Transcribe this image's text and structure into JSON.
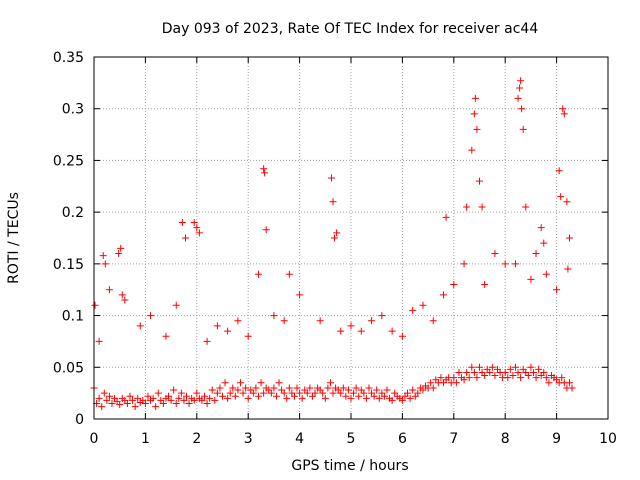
{
  "chart_data": {
    "type": "scatter",
    "title": "Day 093 of 2023, Rate Of TEC Index for receiver ac44",
    "xlabel": "GPS time / hours",
    "ylabel": "ROTI / TECUs",
    "xlim": [
      0,
      10
    ],
    "ylim": [
      0,
      0.35
    ],
    "x_ticks": [
      "0",
      "1",
      "2",
      "3",
      "4",
      "5",
      "6",
      "7",
      "8",
      "9",
      "10"
    ],
    "y_ticks": [
      "0",
      "0.05",
      "0.1",
      "0.15",
      "0.2",
      "0.25",
      "0.3",
      "0.35"
    ],
    "grid": true,
    "marker": "+",
    "color": "#ff0000",
    "series": [
      {
        "x": [
          0.0,
          0.05,
          0.1,
          0.15,
          0.2,
          0.25,
          0.3,
          0.35,
          0.4,
          0.45,
          0.5,
          0.55,
          0.6,
          0.65,
          0.7,
          0.75,
          0.8,
          0.85,
          0.9,
          0.95,
          1.0,
          1.05,
          1.1,
          1.15,
          1.2,
          1.25,
          1.3,
          1.35,
          1.4,
          1.45,
          1.5,
          1.55,
          1.6,
          1.65,
          1.7,
          1.75,
          1.8,
          1.85,
          1.9,
          1.95,
          2.0,
          2.05,
          2.1,
          2.15,
          2.2,
          2.25,
          2.3,
          2.35,
          2.4,
          2.45,
          2.5,
          2.55,
          2.6,
          2.65,
          2.7,
          2.75,
          2.8,
          2.85,
          2.9,
          2.95,
          3.0,
          3.05,
          3.1,
          3.15,
          3.2,
          3.25,
          3.3,
          3.35,
          3.4,
          3.45,
          3.5,
          3.55,
          3.6,
          3.65,
          3.7,
          3.75,
          3.8,
          3.85,
          3.9,
          3.95,
          4.0,
          4.05,
          4.1,
          4.15,
          4.2,
          4.25,
          4.3,
          4.35,
          4.4,
          4.45,
          4.5,
          4.55,
          4.6,
          4.65,
          4.7,
          4.75,
          4.8,
          4.85,
          4.9,
          4.95,
          5.0,
          5.05,
          5.1,
          5.15,
          5.2,
          5.25,
          5.3,
          5.35,
          5.4,
          5.45,
          5.5,
          5.55,
          5.6,
          5.65,
          5.7,
          5.75,
          5.8,
          5.85,
          5.9,
          5.95,
          6.0,
          6.05,
          6.1,
          6.15,
          6.2,
          6.25,
          6.3,
          6.35,
          6.4,
          6.45,
          6.5,
          6.55,
          6.6,
          6.65,
          6.7,
          6.75,
          6.8,
          6.85,
          6.9,
          6.95,
          7.0,
          7.05,
          7.1,
          7.15,
          7.2,
          7.25,
          7.3,
          7.35,
          7.4,
          7.45,
          7.5,
          7.55,
          7.6,
          7.65,
          7.7,
          7.75,
          7.8,
          7.85,
          7.9,
          7.95,
          8.0,
          8.05,
          8.1,
          8.15,
          8.2,
          8.25,
          8.3,
          8.35,
          8.4,
          8.45,
          8.5,
          8.55,
          8.6,
          8.65,
          8.7,
          8.75,
          8.8,
          8.85,
          8.9,
          8.95,
          9.0,
          9.05,
          9.1,
          9.15,
          9.2,
          9.25,
          9.3,
          0.02,
          0.18,
          0.22,
          0.48,
          0.52,
          0.55,
          1.72,
          1.78,
          1.95,
          2.0,
          2.05,
          3.3,
          3.32,
          3.35,
          4.62,
          4.65,
          4.68,
          4.72,
          6.85,
          7.25,
          7.35,
          7.4,
          7.42,
          7.45,
          7.5,
          7.55,
          8.25,
          8.28,
          8.3,
          8.32,
          8.35,
          8.4,
          8.7,
          8.75,
          9.05,
          9.08,
          9.12,
          9.15,
          9.2,
          9.25,
          0.1,
          0.3,
          0.6,
          0.9,
          1.1,
          1.4,
          1.6,
          2.2,
          2.4,
          2.6,
          2.8,
          3.0,
          3.2,
          3.5,
          3.7,
          3.8,
          4.0,
          4.4,
          4.8,
          5.0,
          5.2,
          5.4,
          5.6,
          5.8,
          6.0,
          6.2,
          6.4,
          6.6,
          6.8,
          7.0,
          7.2,
          7.6,
          7.8,
          8.0,
          8.2,
          8.5,
          8.6,
          8.8,
          9.0,
          9.22
        ],
        "y": [
          0.03,
          0.015,
          0.02,
          0.012,
          0.025,
          0.018,
          0.022,
          0.015,
          0.02,
          0.017,
          0.014,
          0.02,
          0.018,
          0.015,
          0.022,
          0.018,
          0.012,
          0.02,
          0.016,
          0.018,
          0.015,
          0.022,
          0.018,
          0.02,
          0.012,
          0.025,
          0.018,
          0.015,
          0.02,
          0.022,
          0.018,
          0.028,
          0.015,
          0.02,
          0.025,
          0.018,
          0.022,
          0.015,
          0.02,
          0.018,
          0.025,
          0.02,
          0.018,
          0.022,
          0.015,
          0.02,
          0.028,
          0.018,
          0.025,
          0.03,
          0.022,
          0.035,
          0.02,
          0.025,
          0.03,
          0.022,
          0.028,
          0.035,
          0.025,
          0.03,
          0.02,
          0.028,
          0.025,
          0.03,
          0.022,
          0.035,
          0.025,
          0.03,
          0.028,
          0.025,
          0.03,
          0.022,
          0.035,
          0.028,
          0.025,
          0.02,
          0.03,
          0.025,
          0.022,
          0.03,
          0.025,
          0.02,
          0.028,
          0.025,
          0.03,
          0.022,
          0.025,
          0.03,
          0.028,
          0.025,
          0.02,
          0.03,
          0.035,
          0.025,
          0.03,
          0.028,
          0.025,
          0.03,
          0.022,
          0.028,
          0.02,
          0.025,
          0.03,
          0.022,
          0.028,
          0.025,
          0.02,
          0.03,
          0.025,
          0.022,
          0.028,
          0.02,
          0.025,
          0.022,
          0.028,
          0.02,
          0.018,
          0.025,
          0.022,
          0.02,
          0.018,
          0.022,
          0.025,
          0.02,
          0.028,
          0.022,
          0.025,
          0.03,
          0.028,
          0.032,
          0.03,
          0.035,
          0.03,
          0.038,
          0.035,
          0.04,
          0.035,
          0.038,
          0.04,
          0.035,
          0.04,
          0.035,
          0.045,
          0.04,
          0.038,
          0.045,
          0.04,
          0.05,
          0.045,
          0.04,
          0.05,
          0.045,
          0.042,
          0.048,
          0.045,
          0.05,
          0.042,
          0.048,
          0.045,
          0.04,
          0.045,
          0.04,
          0.048,
          0.042,
          0.05,
          0.045,
          0.04,
          0.048,
          0.045,
          0.042,
          0.05,
          0.045,
          0.04,
          0.048,
          0.042,
          0.045,
          0.04,
          0.035,
          0.042,
          0.04,
          0.038,
          0.035,
          0.04,
          0.035,
          0.03,
          0.035,
          0.03,
          0.11,
          0.158,
          0.15,
          0.16,
          0.165,
          0.12,
          0.19,
          0.175,
          0.19,
          0.185,
          0.18,
          0.242,
          0.238,
          0.183,
          0.233,
          0.21,
          0.175,
          0.18,
          0.195,
          0.205,
          0.26,
          0.295,
          0.31,
          0.28,
          0.23,
          0.205,
          0.31,
          0.32,
          0.327,
          0.3,
          0.28,
          0.205,
          0.185,
          0.17,
          0.24,
          0.215,
          0.3,
          0.295,
          0.21,
          0.175,
          0.075,
          0.125,
          0.115,
          0.09,
          0.1,
          0.08,
          0.11,
          0.075,
          0.09,
          0.085,
          0.095,
          0.08,
          0.14,
          0.1,
          0.095,
          0.14,
          0.12,
          0.095,
          0.085,
          0.09,
          0.085,
          0.095,
          0.1,
          0.085,
          0.08,
          0.105,
          0.11,
          0.095,
          0.12,
          0.13,
          0.15,
          0.13,
          0.16,
          0.15,
          0.15,
          0.135,
          0.16,
          0.14,
          0.125,
          0.145
        ]
      }
    ]
  }
}
